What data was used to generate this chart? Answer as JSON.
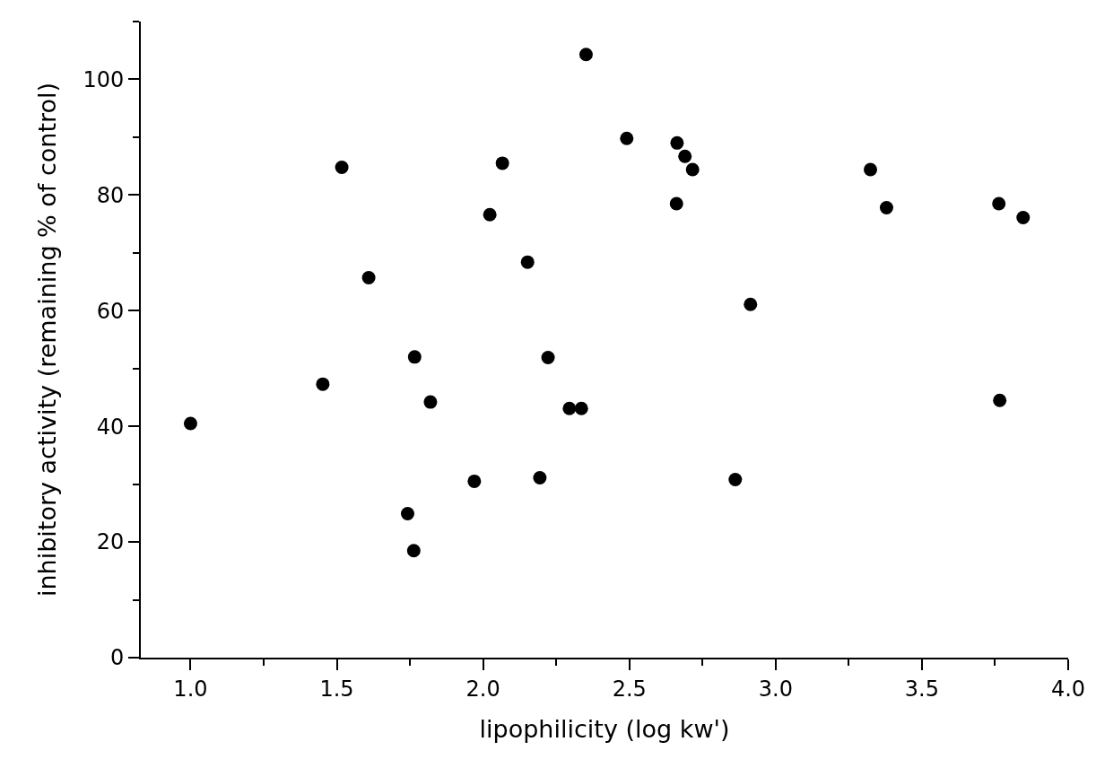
{
  "chart_data": {
    "type": "scatter",
    "xlabel": "lipophilicity (log kw')",
    "ylabel": "inhibitory activity (remaining % of control)",
    "marker": "circle",
    "grid": false,
    "xlim": [
      0.83,
      4.0
    ],
    "ylim": [
      0,
      110
    ],
    "xticks": [
      {
        "value": 1.0,
        "label": "1.0"
      },
      {
        "value": 1.25,
        "label": null
      },
      {
        "value": 1.5,
        "label": "1.5"
      },
      {
        "value": 1.75,
        "label": null
      },
      {
        "value": 2.0,
        "label": "2.0"
      },
      {
        "value": 2.25,
        "label": null
      },
      {
        "value": 2.5,
        "label": "2.5"
      },
      {
        "value": 2.75,
        "label": null
      },
      {
        "value": 3.0,
        "label": "3.0"
      },
      {
        "value": 3.25,
        "label": null
      },
      {
        "value": 3.5,
        "label": "3.5"
      },
      {
        "value": 3.75,
        "label": null
      },
      {
        "value": 4.0,
        "label": "4.0"
      }
    ],
    "yticks": [
      0,
      {
        "value": 10,
        "label": null
      },
      20,
      {
        "value": 30,
        "label": null
      },
      40,
      {
        "value": 50,
        "label": null
      },
      60,
      {
        "value": 70,
        "label": null
      },
      80,
      {
        "value": 90,
        "label": null
      },
      100,
      {
        "value": 110,
        "label": null
      }
    ],
    "series": [
      {
        "color": "#000000",
        "x": [
          1.0,
          1.517,
          1.609,
          1.766,
          1.452,
          1.82,
          1.742,
          1.763,
          2.352,
          2.491,
          2.066,
          2.663,
          2.69,
          2.716,
          2.661,
          2.023,
          2.152,
          2.914,
          2.222,
          2.295,
          2.336,
          1.97,
          2.194,
          2.862,
          3.324,
          3.379,
          3.763,
          3.846,
          3.766
        ],
        "values": [
          40.5,
          84.8,
          65.7,
          52.0,
          47.3,
          44.2,
          24.9,
          18.5,
          104.3,
          89.8,
          85.5,
          89.0,
          86.7,
          84.4,
          78.5,
          76.6,
          68.4,
          61.1,
          51.9,
          43.1,
          43.1,
          30.5,
          31.1,
          30.8,
          84.4,
          77.8,
          78.5,
          76.1,
          44.5
        ]
      }
    ]
  }
}
